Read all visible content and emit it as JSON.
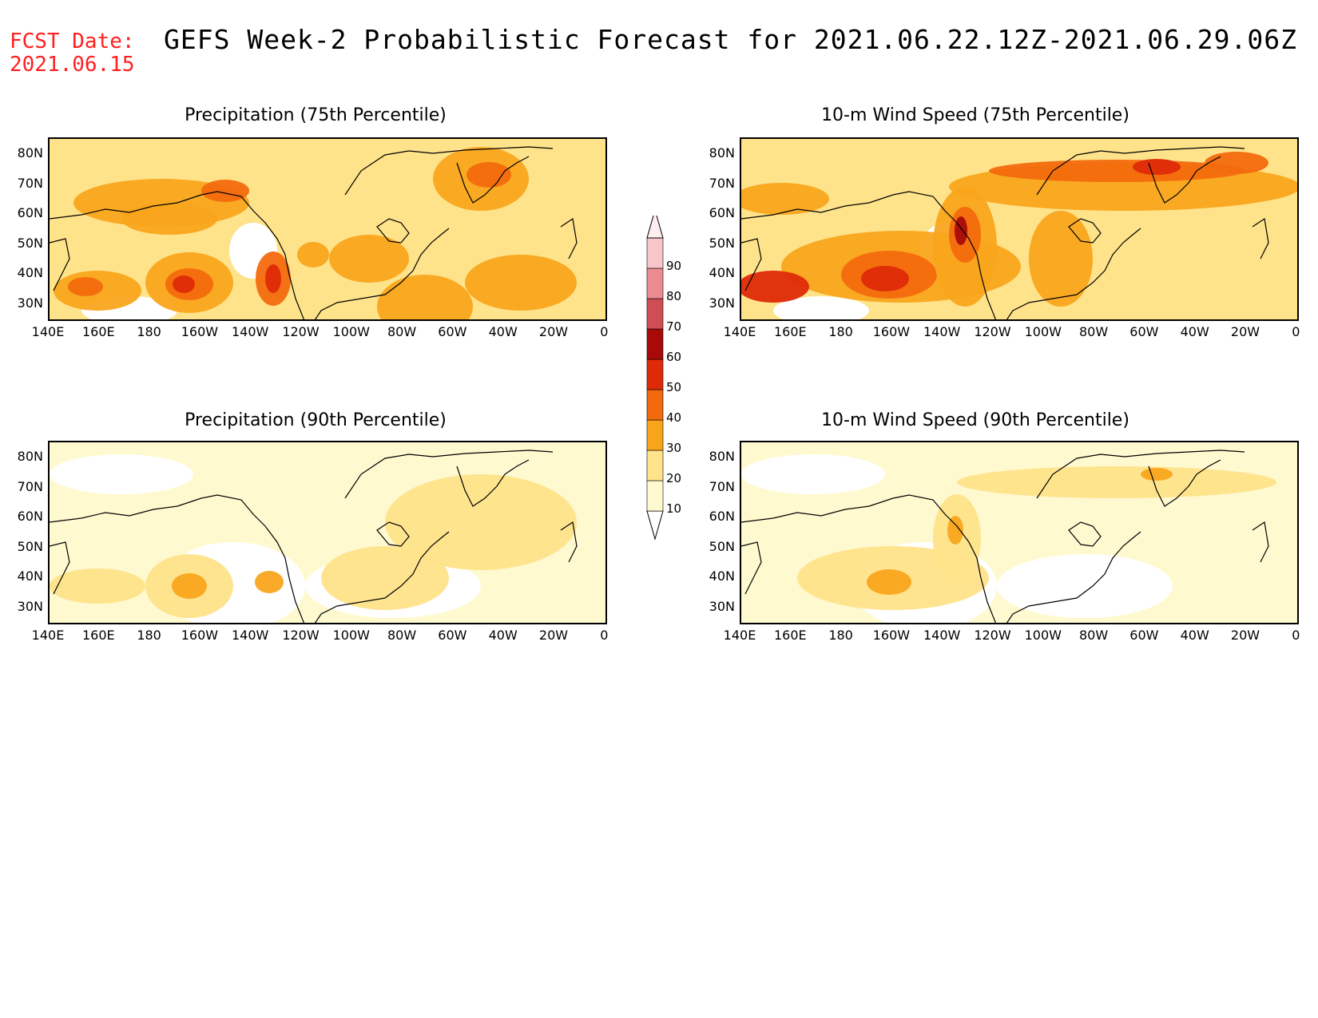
{
  "header": {
    "fcst_line1": "FCST Date:",
    "fcst_line2": "2021.06.15",
    "title": "GEFS Week-2 Probabilistic Forecast for 2021.06.22.12Z-2021.06.29.06Z"
  },
  "axes": {
    "lat_labels": [
      "80N",
      "70N",
      "60N",
      "50N",
      "40N",
      "30N"
    ],
    "lon_labels": [
      "140E",
      "160E",
      "180",
      "160W",
      "140W",
      "120W",
      "100W",
      "80W",
      "60W",
      "40W",
      "20W",
      "0"
    ]
  },
  "panels": [
    {
      "title": "Precipitation (75th Percentile)",
      "fill": "moderate"
    },
    {
      "title": "10-m Wind Speed (75th Percentile)",
      "fill": "moderate"
    },
    {
      "title": "Precipitation (90th Percentile)",
      "fill": "low"
    },
    {
      "title": "10-m Wind Speed (90th Percentile)",
      "fill": "low"
    }
  ],
  "legend": {
    "levels": [
      "10",
      "20",
      "30",
      "40",
      "50",
      "60",
      "70",
      "80",
      "90"
    ],
    "colors": [
      "#fff9d0",
      "#ffe38a",
      "#f9a51c",
      "#f36a0e",
      "#de2a08",
      "#a80a0a",
      "#cf4d55",
      "#ea8b92",
      "#f7c6ca",
      "#fdeef0"
    ]
  }
}
